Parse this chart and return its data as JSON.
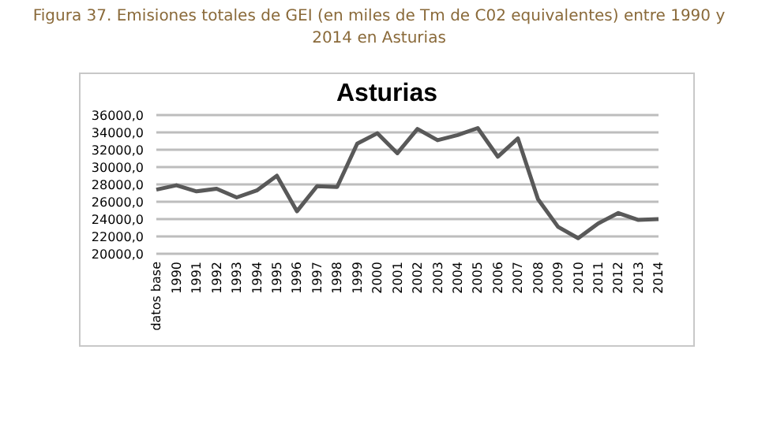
{
  "chart_data": {
    "type": "line",
    "title": "Figura 37. Emisiones totales de GEI (en miles de Tm de C02 equivalentes) entre 1990 y 2014 en Asturias",
    "subtitle": "Asturias",
    "categories": [
      "datos base",
      "1990",
      "1991",
      "1992",
      "1993",
      "1994",
      "1995",
      "1996",
      "1997",
      "1998",
      "1999",
      "2000",
      "2001",
      "2002",
      "2003",
      "2004",
      "2005",
      "2006",
      "2007",
      "2008",
      "2009",
      "2010",
      "2011",
      "2012",
      "2013",
      "2014"
    ],
    "series": [
      {
        "color": "#595959",
        "values": [
          27400,
          27900,
          27200,
          27500,
          26500,
          27300,
          29000,
          24900,
          27800,
          27700,
          32700,
          33900,
          31600,
          34400,
          33100,
          33700,
          34500,
          31200,
          33300,
          26300,
          23100,
          21800,
          23500,
          24700,
          23900,
          24000
        ]
      }
    ],
    "ylim": [
      20000,
      36000
    ],
    "yticks": [
      {
        "value": 20000,
        "label": "20000,0"
      },
      {
        "value": 22000,
        "label": "22000,0"
      },
      {
        "value": 24000,
        "label": "24000,0"
      },
      {
        "value": 26000,
        "label": "26000,0"
      },
      {
        "value": 28000,
        "label": "28000,0"
      },
      {
        "value": 30000,
        "label": "30000,0"
      },
      {
        "value": 32000,
        "label": "32000,0"
      },
      {
        "value": 34000,
        "label": "34000,0"
      },
      {
        "value": 36000,
        "label": "36000,0"
      }
    ],
    "grid": "y",
    "marker": "none",
    "line_style": "solid"
  }
}
